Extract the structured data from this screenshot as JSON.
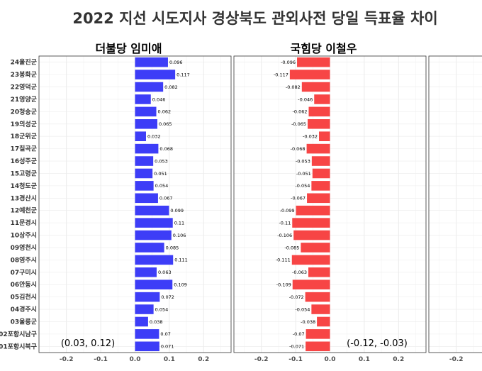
{
  "title": "2022 지선 시도지사  경상북도 관외사전 당일 득표율 차이",
  "chart_data": {
    "type": "bar",
    "orientation": "horizontal",
    "title": "2022 지선 시도지사  경상북도 관외사전 당일 득표율 차이",
    "categories": [
      "24울진군",
      "23봉화군",
      "22영덕군",
      "21영양군",
      "20청송군",
      "19의성군",
      "18군위군",
      "17칠곡군",
      "16성주군",
      "15고령군",
      "14청도군",
      "13경산시",
      "12예천군",
      "11문경시",
      "10상주시",
      "09영천시",
      "08영주시",
      "07구미시",
      "06안동시",
      "05김천시",
      "04경주시",
      "03울릉군",
      "02포항시남구",
      "01포항시북구"
    ],
    "xlim": [
      -0.28,
      0.28
    ],
    "xticks": [
      "-0.2",
      "-0.1",
      "0.0",
      "0.1",
      "0.2"
    ],
    "panels": [
      {
        "name": "더불당 임미애",
        "color": "#3d3df7",
        "values": [
          0.096,
          0.117,
          0.082,
          0.046,
          0.062,
          0.065,
          0.032,
          0.068,
          0.053,
          0.051,
          0.054,
          0.067,
          0.099,
          0.11,
          0.106,
          0.085,
          0.111,
          0.063,
          0.109,
          0.072,
          0.054,
          0.038,
          0.07,
          0.071
        ],
        "labels": [
          "0.096",
          "0.117",
          "0.082",
          "0.046",
          "0.062",
          "0.065",
          "0.032",
          "0.068",
          "0.053",
          "0.051",
          "0.054",
          "0.067",
          "0.099",
          "0.11",
          "0.106",
          "0.085",
          "0.111",
          "0.063",
          "0.109",
          "0.072",
          "0.054",
          "0.038",
          "0.07",
          "0.071"
        ],
        "annotation": "(0.03, 0.12)"
      },
      {
        "name": "국힘당 이철우",
        "color": "#f74545",
        "values": [
          -0.096,
          -0.117,
          -0.082,
          -0.046,
          -0.062,
          -0.065,
          -0.032,
          -0.068,
          -0.053,
          -0.051,
          -0.054,
          -0.067,
          -0.099,
          -0.11,
          -0.106,
          -0.085,
          -0.111,
          -0.063,
          -0.109,
          -0.072,
          -0.054,
          -0.038,
          -0.07,
          -0.071
        ],
        "labels": [
          "-0.096",
          "-0.117",
          "-0.082",
          "-0.046",
          "-0.062",
          "-0.065",
          "-0.032",
          "-0.068",
          "-0.053",
          "-0.051",
          "-0.054",
          "-0.067",
          "-0.099",
          "-0.11",
          "-0.106",
          "-0.085",
          "-0.111",
          "-0.063",
          "-0.109",
          "-0.072",
          "-0.054",
          "-0.038",
          "-0.07",
          "-0.071"
        ],
        "annotation": "(-0.12, -0.03)"
      },
      {
        "name": "",
        "color": "#888888",
        "values": [],
        "labels": [],
        "annotation": ""
      }
    ],
    "grid": true,
    "legend": "none"
  }
}
